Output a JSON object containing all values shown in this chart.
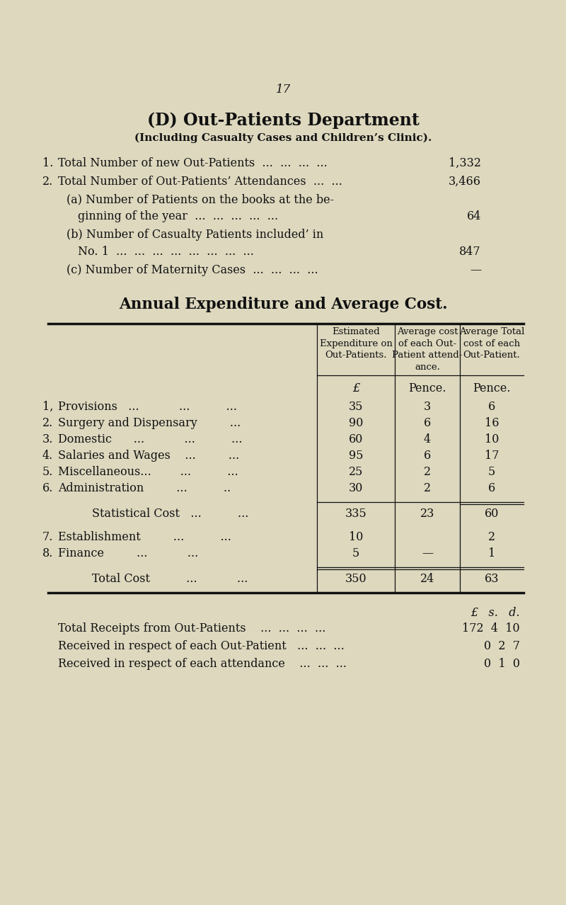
{
  "bg_color": "#ddd8be",
  "text_color": "#111111",
  "page_number": "17",
  "title": "(D) Out-Patients Department",
  "subtitle": "(Including Casualty Cases and Children’s Clinic).",
  "table_title": "Annual Expenditure and Average Cost.",
  "col_headers": [
    "Estimated\nExpenditure on\nOut-Patients.",
    "Average cost\nof each Out-\nPatient attend-\nance.",
    "Average Total\ncost of each\nOut-Patient."
  ],
  "col_units": [
    "£",
    "Pence.",
    "Pence."
  ],
  "rows": [
    {
      "num": "1,",
      "label": "Provisions   ...           ...          ...",
      "col1": "35",
      "col2": "3",
      "col3": "6"
    },
    {
      "num": "2.",
      "label": "Surgery and Dispensary         ...",
      "col1": "90",
      "col2": "6",
      "col3": "16"
    },
    {
      "num": "3.",
      "label": "Domestic      ...           ...          ...",
      "col1": "60",
      "col2": "4",
      "col3": "10"
    },
    {
      "num": "4.",
      "label": "Salaries and Wages    ...         ...",
      "col1": "95",
      "col2": "6",
      "col3": "17"
    },
    {
      "num": "5.",
      "label": "Miscellaneous...        ...          ...",
      "col1": "25",
      "col2": "2",
      "col3": "5"
    },
    {
      "num": "6.",
      "label": "Administration         ...          ..",
      "col1": "30",
      "col2": "2",
      "col3": "6"
    }
  ],
  "stat_row": {
    "label": "Statistical Cost   ...          ...",
    "col1": "335",
    "col2": "23",
    "col3": "60"
  },
  "extra_rows": [
    {
      "num": "7.",
      "label": "Establishment         ...          ...",
      "col1": "10",
      "col2": "",
      "col3": "2"
    },
    {
      "num": "8.",
      "label": "Finance         ...           ...",
      "col1": "5",
      "col2": "—",
      "col3": "1"
    }
  ],
  "total_row": {
    "label": "Total Cost          ...           ...",
    "col1": "350",
    "col2": "24",
    "col3": "63"
  },
  "receipts": [
    {
      "label": "Total Receipts from Out-Patients    ...  ...  ...  ...",
      "L": "172",
      "s": "4",
      "d": "10"
    },
    {
      "label": "Received in respect of each Out-Patient   ...  ...  ...",
      "L": "0",
      "s": "2",
      "d": "7"
    },
    {
      "label": "Received in respect of each attendance    ...  ...  ...",
      "L": "0",
      "s": "1",
      "d": "0"
    }
  ]
}
